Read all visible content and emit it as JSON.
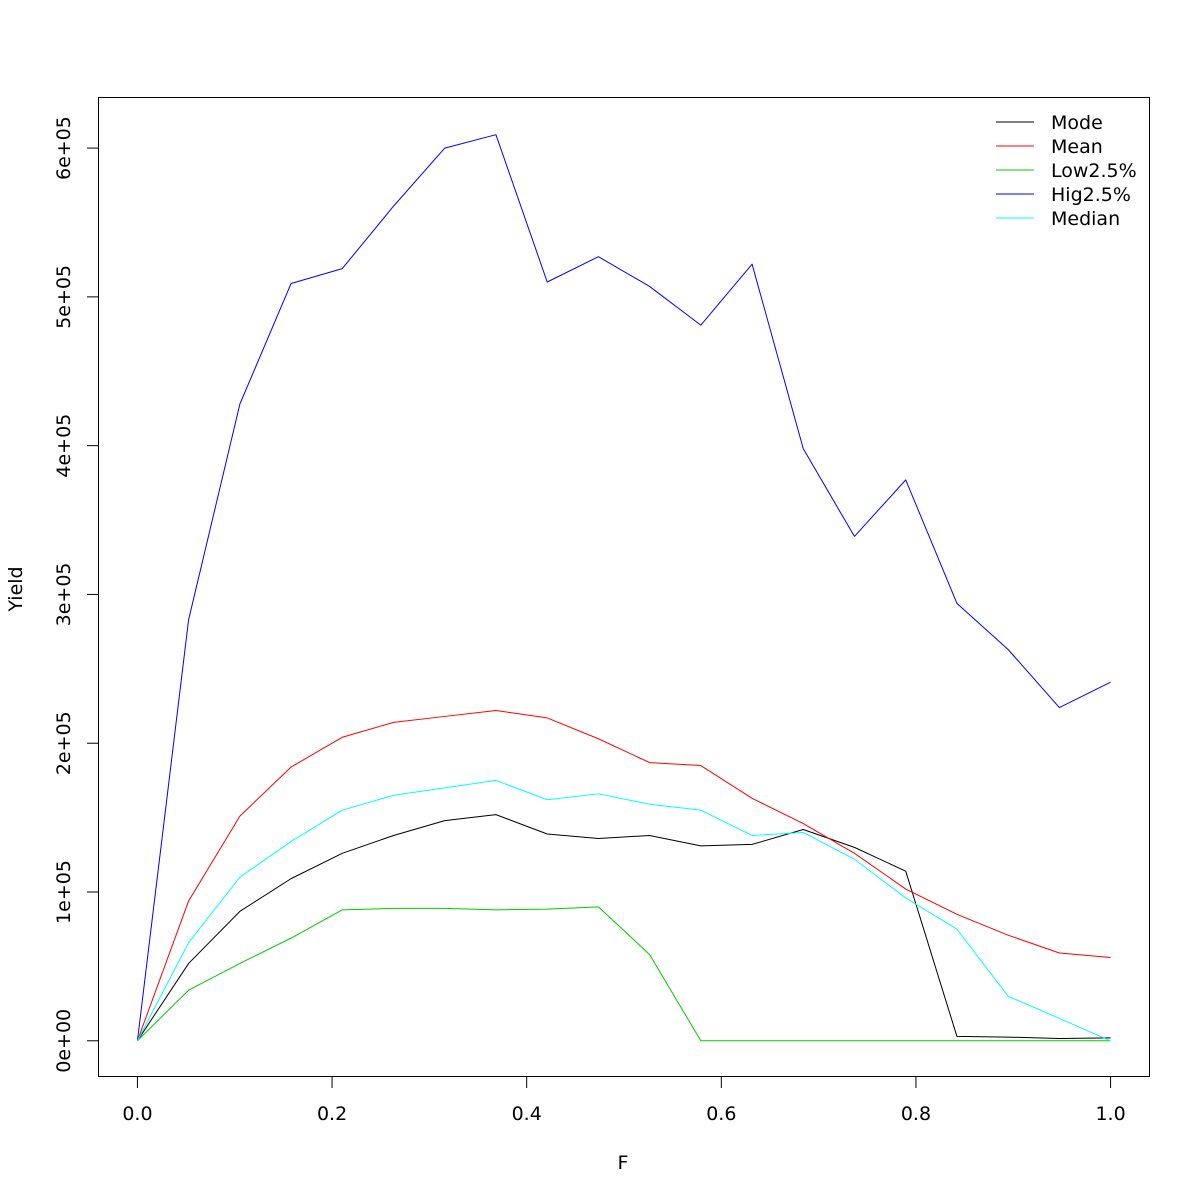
{
  "chart_data": {
    "type": "line",
    "title": "",
    "xlabel": "F",
    "ylabel": "Yield",
    "xlim": [
      -0.04,
      1.04
    ],
    "ylim": [
      -24000,
      634000
    ],
    "x_ticks": [
      {
        "value": 0.0,
        "label": "0.0"
      },
      {
        "value": 0.2,
        "label": "0.2"
      },
      {
        "value": 0.4,
        "label": "0.4"
      },
      {
        "value": 0.6,
        "label": "0.6"
      },
      {
        "value": 0.8,
        "label": "0.8"
      },
      {
        "value": 1.0,
        "label": "1.0"
      }
    ],
    "y_ticks": [
      {
        "value": 0,
        "label": "0e+00"
      },
      {
        "value": 100000,
        "label": "1e+05"
      },
      {
        "value": 200000,
        "label": "2e+05"
      },
      {
        "value": 300000,
        "label": "3e+05"
      },
      {
        "value": 400000,
        "label": "4e+05"
      },
      {
        "value": 500000,
        "label": "5e+05"
      },
      {
        "value": 600000,
        "label": "6e+05"
      }
    ],
    "grid": false,
    "legend_position": "top-right",
    "x": [
      0,
      0.0526,
      0.1053,
      0.1579,
      0.2105,
      0.2632,
      0.3158,
      0.3684,
      0.4211,
      0.4737,
      0.5263,
      0.5789,
      0.6316,
      0.6842,
      0.7368,
      0.7895,
      0.8421,
      0.8947,
      0.9474,
      1.0
    ],
    "series": [
      {
        "name": "Mode",
        "color": "#000000",
        "values": [
          0,
          52000,
          87000,
          109000,
          126000,
          138000,
          148000,
          152000,
          139000,
          136000,
          138000,
          131000,
          132000,
          142000,
          130000,
          114000,
          3000,
          2500,
          1500,
          2000
        ]
      },
      {
        "name": "Mean",
        "color": "#ff0000",
        "values": [
          0,
          94000,
          151000,
          184000,
          204000,
          214000,
          218000,
          222000,
          217000,
          203000,
          187000,
          185000,
          163000,
          146000,
          126000,
          102000,
          85000,
          71000,
          59000,
          56000
        ]
      },
      {
        "name": "Low2.5%",
        "color": "#00cd00",
        "values": [
          0,
          34000,
          52000,
          69000,
          88000,
          89000,
          89000,
          88000,
          88500,
          90000,
          58000,
          0,
          0,
          0,
          0,
          0,
          0,
          0,
          0,
          0
        ]
      },
      {
        "name": "Hig2.5%",
        "color": "#0000ff",
        "values": [
          0,
          283000,
          428000,
          509000,
          519000,
          561000,
          600000,
          609000,
          510000,
          527000,
          507000,
          481000,
          522000,
          398000,
          339000,
          377000,
          294000,
          263000,
          224000,
          241000
        ]
      },
      {
        "name": "Median",
        "color": "#00ffff",
        "values": [
          0,
          66000,
          110000,
          134000,
          155000,
          165000,
          170000,
          175000,
          162000,
          166000,
          159000,
          155000,
          138000,
          140000,
          122000,
          96000,
          75000,
          30000,
          15000,
          0
        ]
      }
    ]
  }
}
